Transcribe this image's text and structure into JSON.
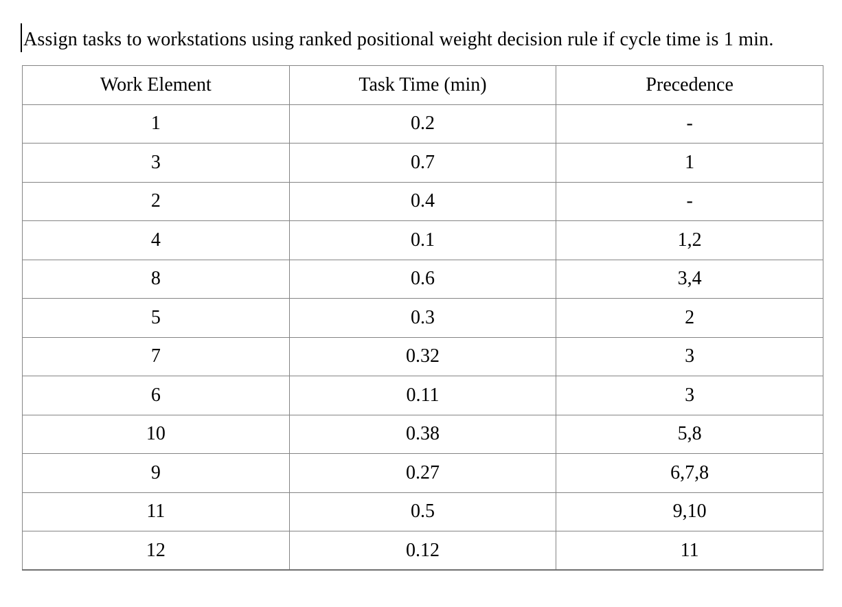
{
  "document": {
    "title": "Assign tasks to workstations using ranked positional weight decision rule if cycle time is 1 min."
  },
  "table": {
    "columns": [
      "Work Element",
      "Task Time (min)",
      "Precedence"
    ],
    "rows": [
      [
        "1",
        "0.2",
        "-"
      ],
      [
        "3",
        "0.7",
        "1"
      ],
      [
        "2",
        "0.4",
        "-"
      ],
      [
        "4",
        "0.1",
        "1,2"
      ],
      [
        "8",
        "0.6",
        "3,4"
      ],
      [
        "5",
        "0.3",
        "2"
      ],
      [
        "7",
        "0.32",
        "3"
      ],
      [
        "6",
        "0.11",
        "3"
      ],
      [
        "10",
        "0.38",
        "5,8"
      ],
      [
        "9",
        "0.27",
        "6,7,8"
      ],
      [
        "11",
        "0.5",
        "9,10"
      ],
      [
        "12",
        "0.12",
        "11"
      ]
    ]
  },
  "colors": {
    "background": "#ffffff",
    "text": "#000000",
    "table_border": "#848484",
    "table_bottom_border": "#6f6f6f"
  }
}
